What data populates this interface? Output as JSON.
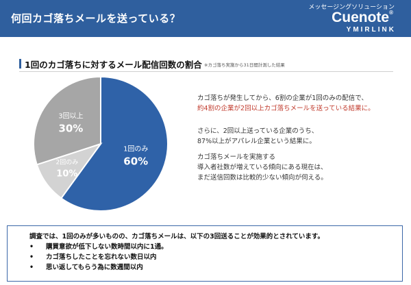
{
  "header": {
    "title": "何回カゴ落ちメールを送っている？",
    "brand_sub": "メッセージングソリューション",
    "brand_name": "Cuenote",
    "brand_reg": "®",
    "brand_tag": "YMIRLINK"
  },
  "section": {
    "title": "1回のカゴ落ちに対するメール配信回数の割合",
    "note": "※カゴ落ち実施から31日間計測した結果"
  },
  "chart_data": {
    "type": "pie",
    "title": "1回のカゴ落ちに対するメール配信回数の割合",
    "slices": [
      {
        "label": "1回のみ",
        "value": 60,
        "value_label": "60%",
        "color": "#2f62a8"
      },
      {
        "label": "2回のみ",
        "value": 10,
        "value_label": "10%",
        "color": "#d3d3d3"
      },
      {
        "label": "3回以上",
        "value": 30,
        "value_label": "30%",
        "color": "#a6a6a6"
      }
    ]
  },
  "description": {
    "p1_line1": "カゴ落ちが発生してから、6割の企業が1回のみの配信で、",
    "p1_line2": "約4割の企業が2回以上カゴ落ちメールを送っている結果に。",
    "p2_line1": "さらに、2回以上送っている企業のうち、",
    "p2_line2": "87%以上がアパレル企業という結果に。",
    "p3_line1": "カゴ落ちメールを実施する",
    "p3_line2": "導入者社数が増えている傾向にある現在は、",
    "p3_line3": "まだ送信回数は比較的少ない傾向が伺える。"
  },
  "summary": {
    "lead": "調査では、1回のみが多いものの、カゴ落ちメールは、以下の3回送ることが効果的とされています。",
    "bullet": "•",
    "items": [
      "購買意欲が低下しない数時間以内に1通。",
      "カゴ落ちしたことを忘れない数日以内",
      "思い返してもらう為に数週間以内"
    ]
  }
}
